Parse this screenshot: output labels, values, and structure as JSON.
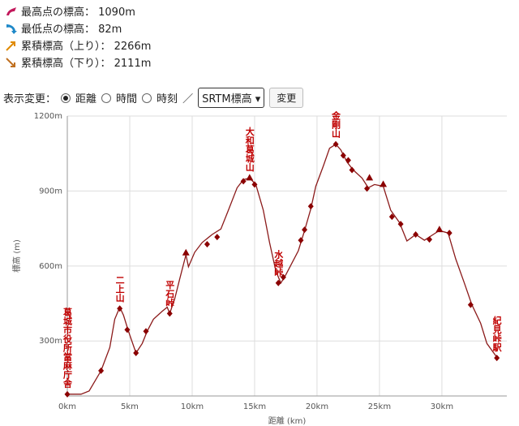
{
  "stats": [
    "最高点の標高： 1090m",
    "最低点の標高： 82m",
    "累積標高（上り）： 2266m",
    "累積標高（下り）： 2111m"
  ],
  "controls": {
    "label": "表示変更：",
    "options": [
      "距離",
      "時間",
      "時刻"
    ],
    "separator": "／",
    "select": "SRTM標高",
    "button": "変更"
  },
  "chart_data": {
    "type": "line",
    "color": "#8b1a1a",
    "grid": true,
    "x_label": "距離 (km)",
    "y_label": "標高 (m)",
    "xlim": [
      0,
      35.2
    ],
    "ylim": [
      80,
      1200
    ],
    "xticks": [
      {
        "value": 0,
        "label": "0km"
      },
      {
        "value": 5,
        "label": "5km"
      },
      {
        "value": 10,
        "label": "10km"
      },
      {
        "value": 15,
        "label": "15km"
      },
      {
        "value": 20,
        "label": "20km"
      },
      {
        "value": 25,
        "label": "25km"
      },
      {
        "value": 30,
        "label": "30km"
      }
    ],
    "yticks": [
      {
        "value": 300,
        "label": "300m"
      },
      {
        "value": 600,
        "label": "600m"
      },
      {
        "value": 900,
        "label": "900m"
      },
      {
        "value": 1200,
        "label": "1200m"
      }
    ],
    "x": [
      0,
      1.1,
      1.75,
      2.7,
      3.4,
      3.8,
      4.2,
      4.5,
      4.9,
      5.5,
      6.0,
      6.4,
      6.9,
      7.6,
      8.0,
      8.2,
      8.6,
      9.0,
      9.5,
      9.7,
      10.2,
      10.8,
      11.6,
      12.3,
      12.9,
      13.6,
      14.1,
      14.6,
      15.1,
      15.7,
      16.2,
      16.7,
      17.1,
      17.5,
      18.0,
      18.5,
      19.0,
      19.5,
      19.9,
      20.5,
      21.0,
      21.5,
      21.9,
      22.4,
      22.9,
      23.6,
      24.1,
      24.6,
      25.3,
      25.9,
      26.6,
      27.2,
      27.9,
      28.6,
      29.3,
      29.8,
      30.5,
      31.1,
      31.8,
      32.4,
      33.1,
      33.6,
      34.4
    ],
    "values": [
      87,
      87,
      100,
      181,
      274,
      387,
      435,
      403,
      339,
      252,
      290,
      339,
      387,
      419,
      435,
      410,
      468,
      548,
      645,
      597,
      655,
      694,
      726,
      748,
      823,
      913,
      945,
      952,
      926,
      823,
      694,
      581,
      532,
      565,
      613,
      661,
      742,
      829,
      919,
      1000,
      1071,
      1087,
      1065,
      1016,
      984,
      952,
      913,
      926,
      919,
      823,
      774,
      700,
      726,
      703,
      726,
      742,
      732,
      629,
      532,
      445,
      371,
      290,
      235
    ],
    "markers": [
      {
        "x": 0,
        "y": 87,
        "shape": "diamond",
        "label": "葛城市役所當麻庁舎"
      },
      {
        "x": 2.7,
        "y": 181,
        "shape": "diamond"
      },
      {
        "x": 4.2,
        "y": 430,
        "shape": "diamond",
        "label": "二上山"
      },
      {
        "x": 4.8,
        "y": 345,
        "shape": "diamond"
      },
      {
        "x": 5.5,
        "y": 252,
        "shape": "diamond"
      },
      {
        "x": 6.3,
        "y": 339,
        "shape": "diamond"
      },
      {
        "x": 8.2,
        "y": 410,
        "shape": "diamond",
        "label": "平石峠"
      },
      {
        "x": 9.5,
        "y": 652,
        "shape": "triangle"
      },
      {
        "x": 11.2,
        "y": 687,
        "shape": "diamond"
      },
      {
        "x": 12.0,
        "y": 716,
        "shape": "diamond"
      },
      {
        "x": 14.1,
        "y": 939,
        "shape": "diamond"
      },
      {
        "x": 14.6,
        "y": 952,
        "shape": "triangle",
        "label": "大和葛城山"
      },
      {
        "x": 15.0,
        "y": 926,
        "shape": "diamond"
      },
      {
        "x": 16.9,
        "y": 532,
        "shape": "diamond",
        "label": "水越峠"
      },
      {
        "x": 17.3,
        "y": 555,
        "shape": "diamond"
      },
      {
        "x": 18.7,
        "y": 703,
        "shape": "diamond"
      },
      {
        "x": 19.0,
        "y": 745,
        "shape": "diamond"
      },
      {
        "x": 19.5,
        "y": 839,
        "shape": "diamond"
      },
      {
        "x": 21.5,
        "y": 1087,
        "shape": "diamond",
        "label": "金剛山"
      },
      {
        "x": 22.1,
        "y": 1042,
        "shape": "diamond"
      },
      {
        "x": 22.5,
        "y": 1023,
        "shape": "diamond"
      },
      {
        "x": 22.8,
        "y": 984,
        "shape": "diamond"
      },
      {
        "x": 24.0,
        "y": 910,
        "shape": "diamond"
      },
      {
        "x": 24.2,
        "y": 952,
        "shape": "triangle"
      },
      {
        "x": 25.3,
        "y": 926,
        "shape": "triangle"
      },
      {
        "x": 26.0,
        "y": 797,
        "shape": "diamond"
      },
      {
        "x": 26.7,
        "y": 768,
        "shape": "diamond"
      },
      {
        "x": 27.9,
        "y": 726,
        "shape": "diamond"
      },
      {
        "x": 29.0,
        "y": 706,
        "shape": "diamond"
      },
      {
        "x": 29.8,
        "y": 745,
        "shape": "triangle"
      },
      {
        "x": 30.6,
        "y": 732,
        "shape": "diamond"
      },
      {
        "x": 32.3,
        "y": 445,
        "shape": "diamond"
      },
      {
        "x": 34.4,
        "y": 232,
        "shape": "diamond",
        "label": "紀見峠駅"
      }
    ]
  }
}
